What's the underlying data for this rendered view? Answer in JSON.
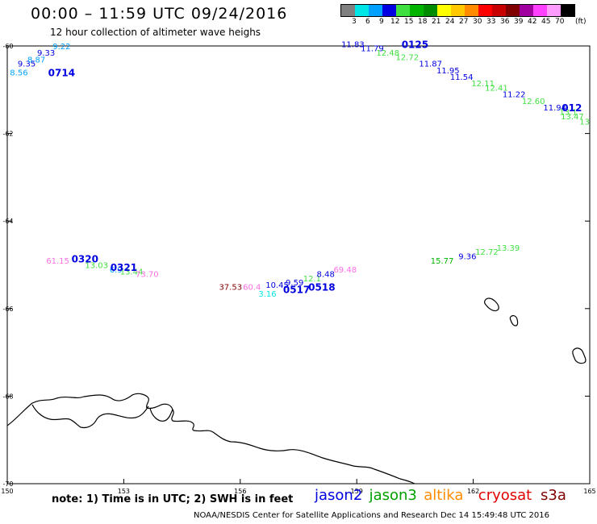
{
  "header": {
    "title": "00:00 – 11:59 UTC 09/24/2016",
    "subtitle": "12 hour collection of altimeter wave heighs"
  },
  "color_scale": {
    "unit": "(ft)",
    "bins": [
      {
        "color": "#808080",
        "label": "3"
      },
      {
        "color": "#00e6e6",
        "label": "6"
      },
      {
        "color": "#00a0ff",
        "label": "9"
      },
      {
        "color": "#0000e0",
        "label": "12"
      },
      {
        "color": "#40e040",
        "label": "15"
      },
      {
        "color": "#00b400",
        "label": "18"
      },
      {
        "color": "#008c00",
        "label": "21"
      },
      {
        "color": "#ffff00",
        "label": "24"
      },
      {
        "color": "#ffc800",
        "label": "27"
      },
      {
        "color": "#ff8c00",
        "label": "30"
      },
      {
        "color": "#ff0000",
        "label": "33"
      },
      {
        "color": "#c80000",
        "label": "36"
      },
      {
        "color": "#800000",
        "label": "39"
      },
      {
        "color": "#a000a0",
        "label": "42"
      },
      {
        "color": "#ff40ff",
        "label": "45"
      },
      {
        "color": "#ff9cff",
        "label": "70"
      },
      {
        "color": "#000000",
        "label": ""
      }
    ]
  },
  "axes": {
    "lon_range": [
      150,
      165
    ],
    "lat_range": [
      -60,
      -70
    ],
    "lon_ticks": [
      "150",
      "153",
      "156",
      "159",
      "162",
      "165"
    ],
    "lat_ticks": [
      "-60",
      "-62",
      "-64",
      "-66",
      "-68",
      "-70"
    ]
  },
  "chart_data": {
    "type": "scatter",
    "points": [
      {
        "lon": 150.3,
        "lat": -60.6,
        "text": "8.56",
        "color": "#00a0ff"
      },
      {
        "lon": 150.5,
        "lat": -60.4,
        "text": "9.35",
        "color": "#0000e0"
      },
      {
        "lon": 150.75,
        "lat": -60.3,
        "text": "8.87",
        "color": "#00a0ff"
      },
      {
        "lon": 151.0,
        "lat": -60.15,
        "text": "9.33",
        "color": "#0000e0"
      },
      {
        "lon": 151.4,
        "lat": -60.0,
        "text": "9.22",
        "color": "#00a0ff"
      },
      {
        "lon": 158.9,
        "lat": -59.95,
        "text": "11.83",
        "color": "#0000e0"
      },
      {
        "lon": 159.4,
        "lat": -60.05,
        "text": "11.79",
        "color": "#0000e0"
      },
      {
        "lon": 159.8,
        "lat": -60.15,
        "text": "12.48",
        "color": "#40e040"
      },
      {
        "lon": 160.3,
        "lat": -60.25,
        "text": "12.72",
        "color": "#40e040"
      },
      {
        "lon": 160.9,
        "lat": -60.4,
        "text": "11.87",
        "color": "#0000e0"
      },
      {
        "lon": 161.35,
        "lat": -60.55,
        "text": "11.95",
        "color": "#0000e0"
      },
      {
        "lon": 161.7,
        "lat": -60.7,
        "text": "11.54",
        "color": "#0000e0"
      },
      {
        "lon": 162.25,
        "lat": -60.85,
        "text": "12.11",
        "color": "#40e040"
      },
      {
        "lon": 162.6,
        "lat": -60.95,
        "text": "12.41",
        "color": "#40e040"
      },
      {
        "lon": 163.05,
        "lat": -61.1,
        "text": "11.22",
        "color": "#0000e0"
      },
      {
        "lon": 163.55,
        "lat": -61.25,
        "text": "12.60",
        "color": "#40e040"
      },
      {
        "lon": 164.1,
        "lat": -61.4,
        "text": "11.94",
        "color": "#0000e0"
      },
      {
        "lon": 164.45,
        "lat": -61.5,
        "text": "13.1",
        "color": "#40e040"
      },
      {
        "lon": 164.85,
        "lat": -61.6,
        "text": "13.47",
        "color": "#40e040"
      },
      {
        "lon": 165.0,
        "lat": -61.72,
        "text": "13",
        "color": "#40e040"
      },
      {
        "lon": 151.3,
        "lat": -64.9,
        "text": "61.15",
        "color": "#ff6ee6"
      },
      {
        "lon": 152.3,
        "lat": -65.0,
        "text": "13.03",
        "color": "#40e040"
      },
      {
        "lon": 152.8,
        "lat": -65.1,
        "text": "6.9",
        "color": "#00a0ff"
      },
      {
        "lon": 153.2,
        "lat": -65.15,
        "text": "13.44",
        "color": "#40e040"
      },
      {
        "lon": 153.6,
        "lat": -65.2,
        "text": "73.70",
        "color": "#ff6ee6"
      },
      {
        "lon": 155.75,
        "lat": -65.5,
        "text": "37.53",
        "color": "#800000"
      },
      {
        "lon": 156.3,
        "lat": -65.5,
        "text": "60.4",
        "color": "#ff6ee6"
      },
      {
        "lon": 156.7,
        "lat": -65.65,
        "text": "3.16",
        "color": "#00e6e6"
      },
      {
        "lon": 156.95,
        "lat": -65.45,
        "text": "10.45",
        "color": "#0000e0"
      },
      {
        "lon": 157.4,
        "lat": -65.4,
        "text": "9.59",
        "color": "#0000e0"
      },
      {
        "lon": 157.85,
        "lat": -65.3,
        "text": "12.1",
        "color": "#40e040"
      },
      {
        "lon": 158.2,
        "lat": -65.2,
        "text": "8.48",
        "color": "#0000e0"
      },
      {
        "lon": 158.7,
        "lat": -65.1,
        "text": "69.48",
        "color": "#ff6ee6"
      },
      {
        "lon": 161.2,
        "lat": -64.9,
        "text": "15.77",
        "color": "#00b400"
      },
      {
        "lon": 161.85,
        "lat": -64.8,
        "text": "9.36",
        "color": "#0000e0"
      },
      {
        "lon": 162.35,
        "lat": -64.7,
        "text": "12.72",
        "color": "#40e040"
      },
      {
        "lon": 162.9,
        "lat": -64.6,
        "text": "13.39",
        "color": "#40e040"
      }
    ],
    "time_labels": [
      {
        "lon": 151.4,
        "lat": -60.6,
        "text": "0714"
      },
      {
        "lon": 160.5,
        "lat": -59.95,
        "text": "0125"
      },
      {
        "lon": 164.8,
        "lat": -61.4,
        "text": "012"
      },
      {
        "lon": 152.0,
        "lat": -64.85,
        "text": "0320"
      },
      {
        "lon": 153.0,
        "lat": -65.05,
        "text": "0321"
      },
      {
        "lon": 157.45,
        "lat": -65.55,
        "text": "0517"
      },
      {
        "lon": 158.1,
        "lat": -65.5,
        "text": "0518"
      }
    ]
  },
  "note": "note: 1) Time is in UTC; 2) SWH is in feet",
  "legend": [
    {
      "name": "jason2",
      "color": "#0000e0"
    },
    {
      "name": "jason3",
      "color": "#00a000"
    },
    {
      "name": "altika",
      "color": "#ff8c00"
    },
    {
      "name": "cryosat",
      "color": "#e00000"
    },
    {
      "name": "s3a",
      "color": "#800000"
    }
  ],
  "credit": "NOAA/NESDIS Center for Satellite Applications and Research   Dec 14 15:49:48 UTC 2016"
}
